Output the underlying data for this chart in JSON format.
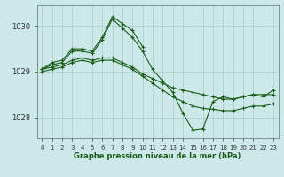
{
  "title": "Graphe pression niveau de la mer (hPa)",
  "background_color": "#cce8e8",
  "grid_color": "#aacccc",
  "line_color": "#1a5c1a",
  "marker": "+",
  "ylim": [
    1027.55,
    1030.45
  ],
  "xlim": [
    -0.5,
    23.5
  ],
  "yticks": [
    1028,
    1029,
    1030
  ],
  "xticks": [
    0,
    1,
    2,
    3,
    4,
    5,
    6,
    7,
    8,
    9,
    10,
    11,
    12,
    13,
    14,
    15,
    16,
    17,
    18,
    19,
    20,
    21,
    22,
    23
  ],
  "curves": [
    {
      "x": [
        0,
        1,
        2,
        3,
        4,
        5,
        6,
        7,
        8,
        9,
        10,
        11,
        12,
        13,
        14,
        15,
        16,
        17,
        18,
        19,
        20,
        21,
        22,
        23
      ],
      "y": [
        1029.05,
        1029.1,
        1029.15,
        1029.25,
        1029.3,
        1029.25,
        1029.3,
        1029.3,
        1029.2,
        1029.1,
        1028.95,
        1028.85,
        1028.75,
        1028.65,
        1028.6,
        1028.55,
        1028.5,
        1028.45,
        1028.4,
        1028.4,
        1028.45,
        1028.5,
        1028.5,
        1028.5
      ]
    },
    {
      "x": [
        0,
        1,
        2,
        3,
        4,
        5,
        6,
        7,
        8,
        9,
        10,
        11,
        12,
        13,
        14,
        15,
        16,
        17,
        18,
        19,
        20,
        21,
        22,
        23
      ],
      "y": [
        1029.0,
        1029.05,
        1029.1,
        1029.2,
        1029.25,
        1029.2,
        1029.25,
        1029.25,
        1029.15,
        1029.05,
        1028.9,
        1028.75,
        1028.6,
        1028.45,
        1028.35,
        1028.25,
        1028.2,
        1028.18,
        1028.15,
        1028.15,
        1028.2,
        1028.25,
        1028.25,
        1028.3
      ]
    },
    {
      "x": [
        0,
        1,
        2,
        3,
        4,
        5,
        6,
        7,
        8,
        9,
        10,
        11,
        12,
        13,
        14,
        15,
        16,
        17,
        18,
        19,
        20,
        21,
        22,
        23
      ],
      "y": [
        1029.05,
        1029.15,
        1029.2,
        1029.45,
        1029.45,
        1029.4,
        1029.7,
        1030.15,
        1029.95,
        1029.75,
        1029.45,
        1029.05,
        1028.8,
        1028.55,
        1028.1,
        1027.72,
        1027.75,
        1028.35,
        1028.45,
        1028.4,
        1028.45,
        1028.5,
        1028.45,
        1028.6
      ]
    },
    {
      "x": [
        0,
        1,
        2,
        3,
        4,
        5,
        6,
        7,
        8,
        9,
        10
      ],
      "y": [
        1029.05,
        1029.2,
        1029.25,
        1029.5,
        1029.5,
        1029.45,
        1029.75,
        1030.2,
        1030.05,
        1029.9,
        1029.55
      ]
    }
  ]
}
